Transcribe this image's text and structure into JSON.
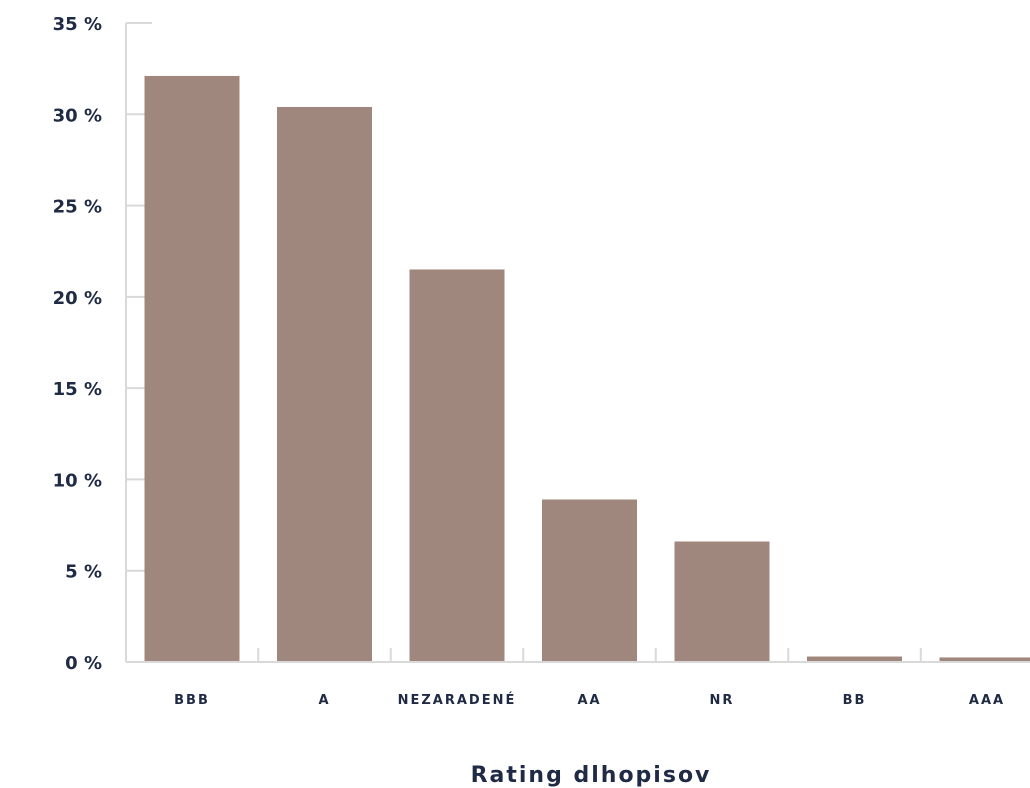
{
  "chart_data": {
    "type": "bar",
    "categories": [
      "BBB",
      "A",
      "NEZARADENÉ",
      "AA",
      "NR",
      "BB",
      "AAA"
    ],
    "values": [
      32.1,
      30.4,
      21.5,
      8.9,
      6.6,
      0.3,
      0.25
    ],
    "xlabel": "Rating dlhopisov",
    "ylabel": "",
    "ylim": [
      0,
      35
    ],
    "yticks": [
      0,
      5,
      10,
      15,
      20,
      25,
      30,
      35
    ],
    "ytick_suffix": " %",
    "bar_color": "#a0877d",
    "grid": false
  }
}
